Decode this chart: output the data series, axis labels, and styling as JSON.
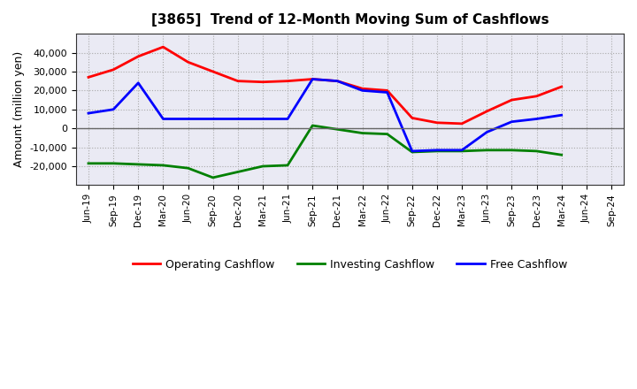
{
  "title": "[3865]  Trend of 12-Month Moving Sum of Cashflows",
  "ylabel": "Amount (million yen)",
  "x_labels": [
    "Jun-19",
    "Sep-19",
    "Dec-19",
    "Mar-20",
    "Jun-20",
    "Sep-20",
    "Dec-20",
    "Mar-21",
    "Jun-21",
    "Sep-21",
    "Dec-21",
    "Mar-22",
    "Jun-22",
    "Sep-22",
    "Dec-22",
    "Mar-23",
    "Jun-23",
    "Sep-23",
    "Dec-23",
    "Mar-24",
    "Jun-24",
    "Sep-24"
  ],
  "operating": [
    27000,
    31000,
    38000,
    43000,
    35000,
    30000,
    25000,
    24500,
    25000,
    26000,
    25000,
    21000,
    20000,
    5500,
    3000,
    2500,
    9000,
    15000,
    17000,
    22000,
    null,
    null
  ],
  "investing": [
    -18500,
    -18500,
    -19000,
    -19500,
    -21000,
    -26000,
    -23000,
    -20000,
    -19500,
    1500,
    -500,
    -2500,
    -3000,
    -12500,
    -12000,
    -12000,
    -11500,
    -11500,
    -12000,
    -14000,
    null,
    null
  ],
  "free": [
    8000,
    10000,
    24000,
    5000,
    5000,
    5000,
    5000,
    5000,
    5000,
    26000,
    25000,
    20000,
    19000,
    -12000,
    -11500,
    -11500,
    -2000,
    3500,
    5000,
    7000,
    null,
    null
  ],
  "colors": {
    "operating": "#ff0000",
    "investing": "#008000",
    "free": "#0000ff"
  },
  "ylim": [
    -30000,
    50000
  ],
  "yticks": [
    -20000,
    -10000,
    0,
    10000,
    20000,
    30000,
    40000
  ],
  "legend_labels": [
    "Operating Cashflow",
    "Investing Cashflow",
    "Free Cashflow"
  ],
  "plot_area_color": "#eaeaf4",
  "background_color": "#ffffff",
  "grid_color": "#aaaaaa"
}
